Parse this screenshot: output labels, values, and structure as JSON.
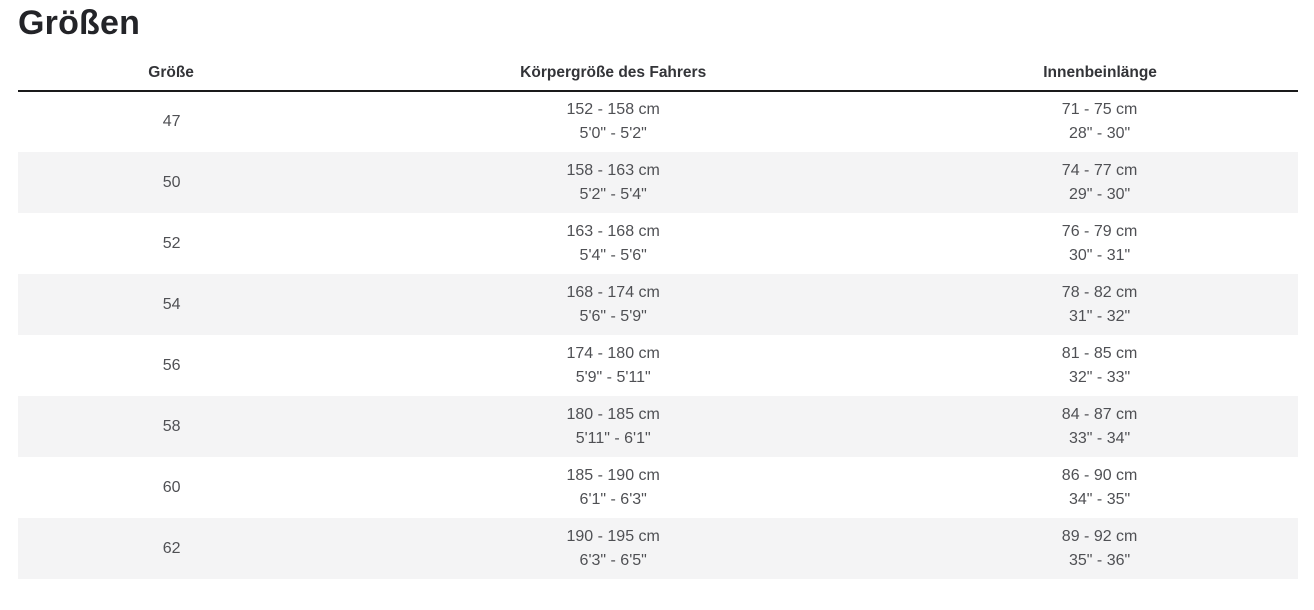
{
  "page": {
    "title": "Größen"
  },
  "table": {
    "columns": [
      "Größe",
      "Körpergröße des Fahrers",
      "Innenbeinlänge"
    ],
    "rows": [
      {
        "size": "47",
        "height_cm": "152 - 158 cm",
        "height_in": "5'0\" - 5'2\"",
        "inseam_cm": "71 - 75 cm",
        "inseam_in": "28\" - 30\""
      },
      {
        "size": "50",
        "height_cm": "158 - 163 cm",
        "height_in": "5'2\" - 5'4\"",
        "inseam_cm": "74 - 77 cm",
        "inseam_in": "29\" - 30\""
      },
      {
        "size": "52",
        "height_cm": "163 - 168 cm",
        "height_in": "5'4\" - 5'6\"",
        "inseam_cm": "76 - 79 cm",
        "inseam_in": "30\" - 31\""
      },
      {
        "size": "54",
        "height_cm": "168 - 174 cm",
        "height_in": "5'6\" - 5'9\"",
        "inseam_cm": "78 - 82 cm",
        "inseam_in": "31\" - 32\""
      },
      {
        "size": "56",
        "height_cm": "174 - 180 cm",
        "height_in": "5'9\" - 5'11\"",
        "inseam_cm": "81 - 85 cm",
        "inseam_in": "32\" - 33\""
      },
      {
        "size": "58",
        "height_cm": "180 - 185 cm",
        "height_in": "5'11\" - 6'1\"",
        "inseam_cm": "84 - 87 cm",
        "inseam_in": "33\" - 34\""
      },
      {
        "size": "60",
        "height_cm": "185 - 190 cm",
        "height_in": "6'1\" - 6'3\"",
        "inseam_cm": "86 - 90 cm",
        "inseam_in": "34\" - 35\""
      },
      {
        "size": "62",
        "height_cm": "190 - 195 cm",
        "height_in": "6'3\" - 6'5\"",
        "inseam_cm": "89 - 92 cm",
        "inseam_in": "35\" - 36\""
      }
    ]
  }
}
